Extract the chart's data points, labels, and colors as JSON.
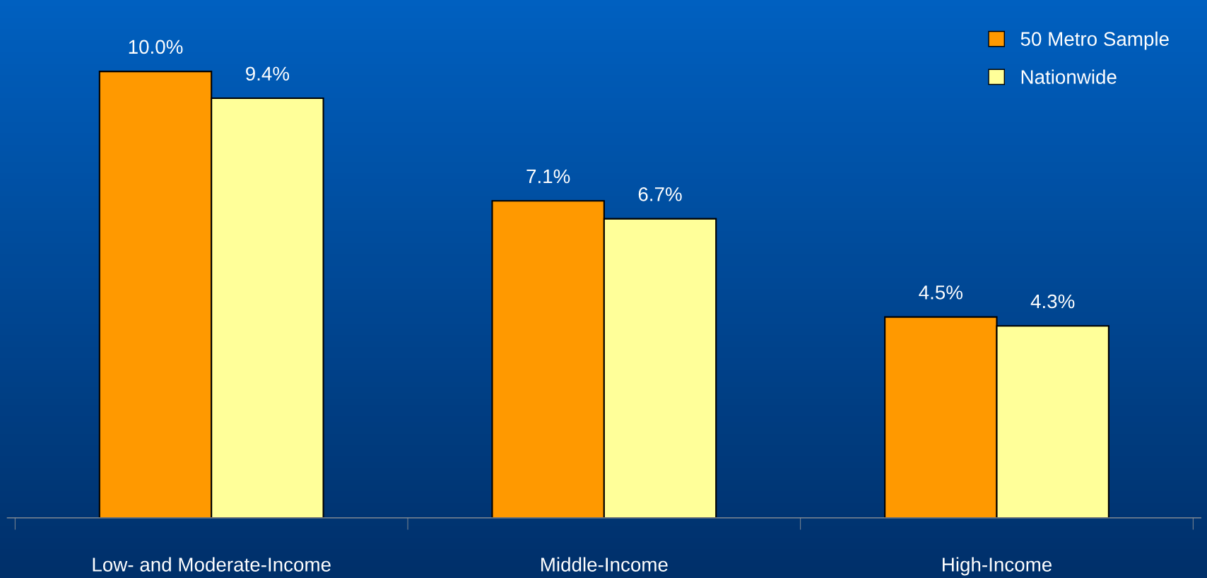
{
  "chart_data": {
    "type": "bar",
    "categories": [
      "Low- and Moderate-Income",
      "Middle-Income",
      "High-Income"
    ],
    "series": [
      {
        "name": "50 Metro Sample",
        "color": "#ff9900",
        "values": [
          10.0,
          7.1,
          4.5
        ],
        "value_labels": [
          "10.0%",
          "7.1%",
          "4.5%"
        ]
      },
      {
        "name": "Nationwide",
        "color": "#ffff99",
        "values": [
          9.4,
          6.7,
          4.3
        ],
        "value_labels": [
          "9.4%",
          "6.7%",
          "4.3%"
        ]
      }
    ],
    "legend": "top right",
    "grid": false
  }
}
